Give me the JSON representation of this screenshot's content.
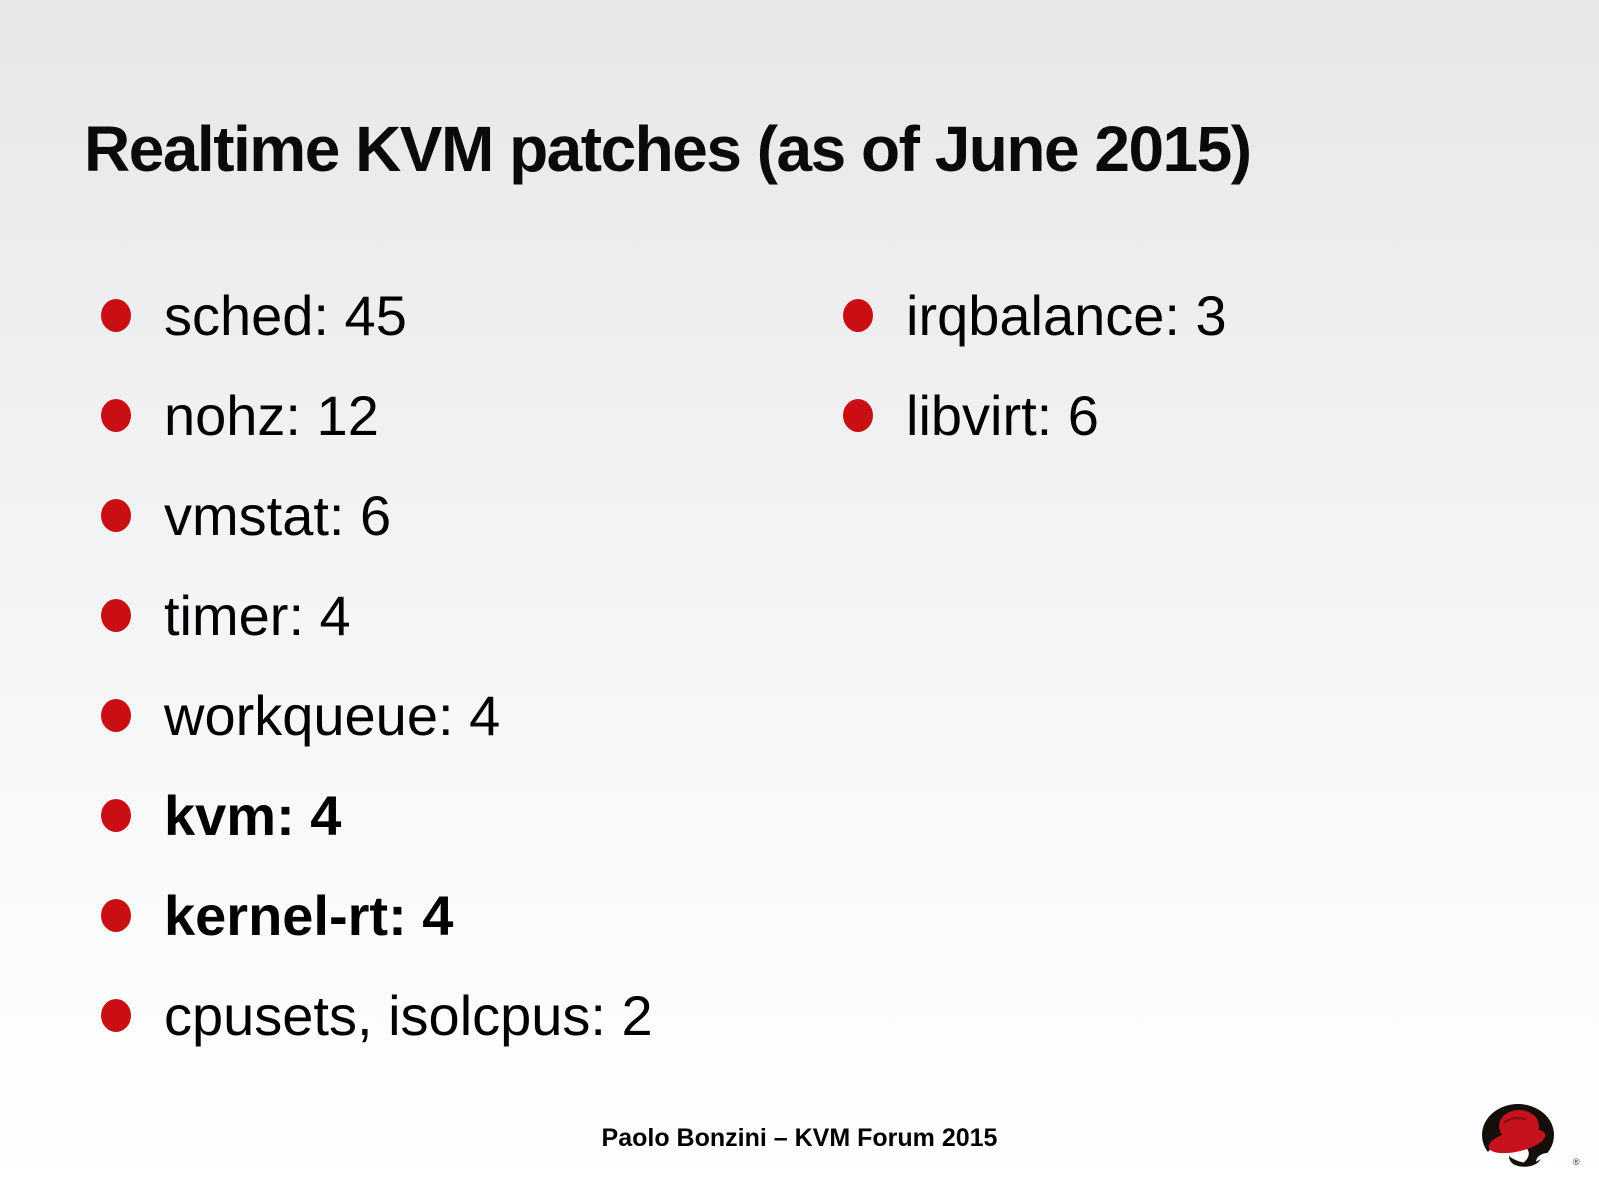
{
  "slide": {
    "title": "Realtime KVM patches (as of June 2015)",
    "left_bullets": [
      {
        "label": "sched: 45",
        "bold": false
      },
      {
        "label": "nohz: 12",
        "bold": false
      },
      {
        "label": "vmstat: 6",
        "bold": false
      },
      {
        "label": "timer: 4",
        "bold": false
      },
      {
        "label": "workqueue: 4",
        "bold": false
      },
      {
        "label": "kvm: 4",
        "bold": true
      },
      {
        "label": "kernel-rt: 4",
        "bold": true
      },
      {
        "label": "cpusets, isolcpus: 2",
        "bold": false
      }
    ],
    "right_bullets": [
      {
        "label": "irqbalance: 3",
        "bold": false
      },
      {
        "label": "libvirt: 6",
        "bold": false
      }
    ],
    "footer": "Paolo Bonzini – KVM Forum 2015",
    "registered_mark": "®",
    "colors": {
      "bullet": "#c90f13",
      "hat_red": "#c6121c",
      "shadow_black": "#150f0c",
      "text": "#000000",
      "background_top": "#e6e7e9",
      "background_bottom": "#ffffff"
    }
  }
}
